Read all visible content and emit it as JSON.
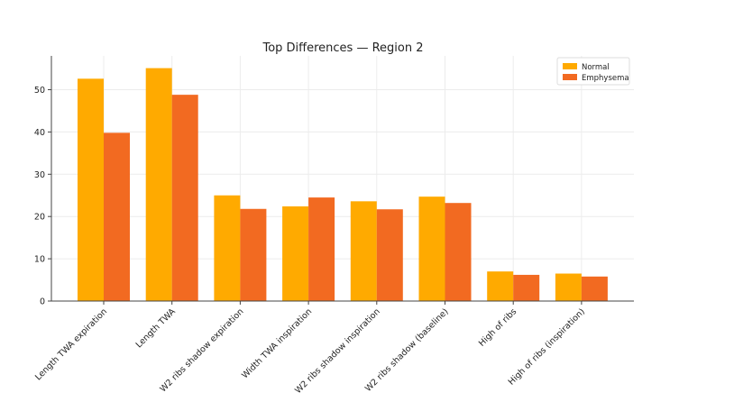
{
  "chart_data": {
    "type": "bar",
    "title": "Top Differences — Region 2",
    "xlabel": "",
    "ylabel": "",
    "ylim": [
      0,
      58
    ],
    "yticks": [
      0,
      10,
      20,
      30,
      40,
      50
    ],
    "grid": true,
    "legend_position": "top-right",
    "categories": [
      "Length TWA expiration",
      "Length TWA",
      "W2 ribs shadow expiration",
      "Width TWA inspiration",
      "W2 ribs shadow inspiration",
      "W2 ribs shadow (baseline)",
      "High of ribs",
      "High of ribs (inspiration)"
    ],
    "series": [
      {
        "name": "Normal",
        "color": "#FFAA00",
        "values": [
          52.6,
          55.1,
          25.0,
          22.4,
          23.6,
          24.7,
          7.0,
          6.5
        ]
      },
      {
        "name": "Emphysema",
        "color": "#F26A21",
        "values": [
          39.8,
          48.8,
          21.8,
          24.5,
          21.7,
          23.2,
          6.2,
          5.8
        ]
      }
    ]
  }
}
